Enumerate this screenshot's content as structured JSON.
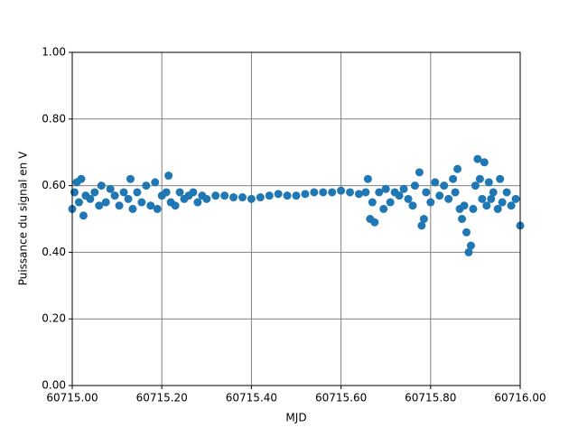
{
  "chart_data": {
    "type": "scatter",
    "xlabel": "MJD",
    "ylabel": "Puissance du signal en V",
    "color": "#1f77b4",
    "grid": true,
    "xlim": [
      60715.0,
      60716.0
    ],
    "ylim": [
      0,
      1
    ],
    "xticks": [
      {
        "value": 60715.0,
        "label": "60715.00"
      },
      {
        "value": 60715.2,
        "label": "60715.20"
      },
      {
        "value": 60715.4,
        "label": "60715.40"
      },
      {
        "value": 60715.6,
        "label": "60715.60"
      },
      {
        "value": 60715.8,
        "label": "60715.80"
      },
      {
        "value": 60716.0,
        "label": "60716.00"
      }
    ],
    "yticks": [
      {
        "value": 0,
        "label": "0.00"
      },
      {
        "value": 0.2,
        "label": "0.20"
      },
      {
        "value": 0.4,
        "label": "0.40"
      },
      {
        "value": 0.6,
        "label": "0.60"
      },
      {
        "value": 0.8,
        "label": "0.80"
      },
      {
        "value": 1,
        "label": "1.00"
      }
    ],
    "x": [
      60715.0,
      60715.005,
      60715.01,
      60715.015,
      60715.02,
      60715.025,
      60715.03,
      60715.04,
      60715.05,
      60715.06,
      60715.065,
      60715.075,
      60715.085,
      60715.095,
      60715.105,
      60715.115,
      60715.125,
      60715.13,
      60715.135,
      60715.145,
      60715.155,
      60715.165,
      60715.175,
      60715.185,
      60715.19,
      60715.2,
      60715.21,
      60715.215,
      60715.22,
      60715.23,
      60715.24,
      60715.25,
      60715.26,
      60715.27,
      60715.28,
      60715.29,
      60715.3,
      60715.32,
      60715.34,
      60715.36,
      60715.38,
      60715.4,
      60715.42,
      60715.44,
      60715.46,
      60715.48,
      60715.5,
      60715.52,
      60715.54,
      60715.56,
      60715.58,
      60715.6,
      60715.62,
      60715.64,
      60715.655,
      60715.66,
      60715.665,
      60715.67,
      60715.675,
      60715.685,
      60715.695,
      60715.7,
      60715.71,
      60715.72,
      60715.73,
      60715.74,
      60715.75,
      60715.76,
      60715.765,
      60715.775,
      60715.78,
      60715.785,
      60715.79,
      60715.8,
      60715.81,
      60715.82,
      60715.83,
      60715.84,
      60715.85,
      60715.855,
      60715.86,
      60715.865,
      60715.87,
      60715.875,
      60715.88,
      60715.885,
      60715.89,
      60715.895,
      60715.9,
      60715.905,
      60715.91,
      60715.915,
      60715.92,
      60715.925,
      60715.93,
      60715.935,
      60715.94,
      60715.95,
      60715.955,
      60715.96,
      60715.97,
      60715.98,
      60715.99,
      60716.0
    ],
    "values": [
      0.53,
      0.58,
      0.61,
      0.55,
      0.62,
      0.51,
      0.57,
      0.56,
      0.58,
      0.54,
      0.6,
      0.55,
      0.59,
      0.57,
      0.54,
      0.58,
      0.56,
      0.62,
      0.53,
      0.58,
      0.55,
      0.6,
      0.54,
      0.61,
      0.53,
      0.57,
      0.58,
      0.63,
      0.55,
      0.54,
      0.58,
      0.56,
      0.57,
      0.58,
      0.55,
      0.57,
      0.56,
      0.57,
      0.57,
      0.565,
      0.565,
      0.56,
      0.565,
      0.57,
      0.575,
      0.57,
      0.57,
      0.575,
      0.58,
      0.58,
      0.58,
      0.585,
      0.58,
      0.575,
      0.58,
      0.62,
      0.5,
      0.55,
      0.49,
      0.58,
      0.53,
      0.59,
      0.55,
      0.58,
      0.57,
      0.59,
      0.56,
      0.54,
      0.6,
      0.64,
      0.48,
      0.5,
      0.58,
      0.55,
      0.61,
      0.57,
      0.6,
      0.56,
      0.62,
      0.58,
      0.65,
      0.53,
      0.5,
      0.54,
      0.46,
      0.4,
      0.42,
      0.53,
      0.6,
      0.68,
      0.62,
      0.56,
      0.67,
      0.54,
      0.61,
      0.56,
      0.58,
      0.53,
      0.62,
      0.55,
      0.58,
      0.54,
      0.56,
      0.48
    ]
  }
}
